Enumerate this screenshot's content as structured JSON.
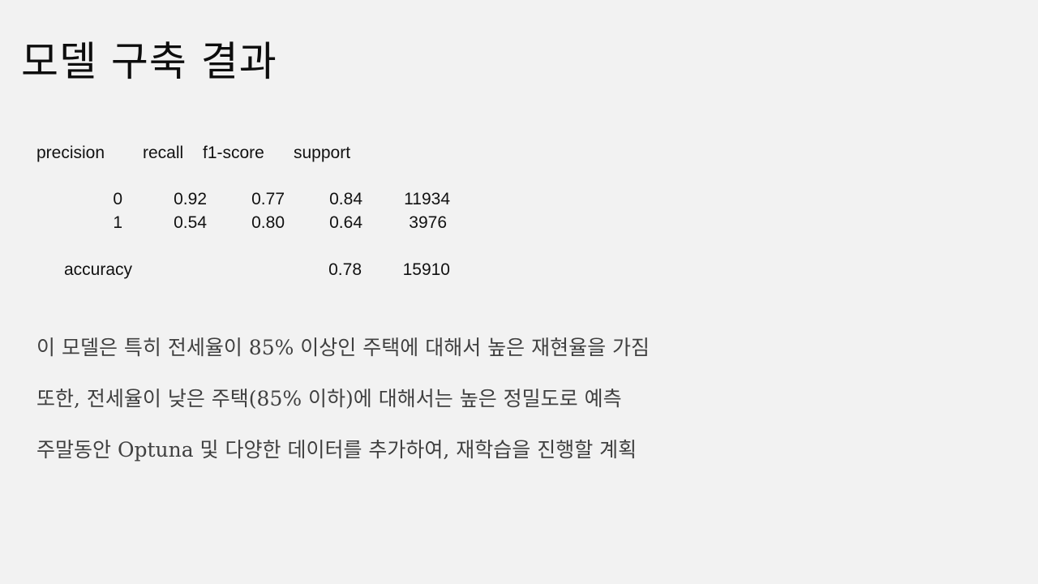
{
  "slide": {
    "title": "모델 구축 결과"
  },
  "classification_report": {
    "columns": [
      "precision",
      "recall",
      "f1-score",
      "support"
    ],
    "rows": [
      {
        "label": "0",
        "precision": "0.92",
        "recall": "0.77",
        "f1_score": "0.84",
        "support": "11934"
      },
      {
        "label": "1",
        "precision": "0.54",
        "recall": "0.80",
        "f1_score": "0.64",
        "support": "3976"
      }
    ],
    "accuracy": {
      "label": "accuracy",
      "f1_score": "0.78",
      "support": "15910"
    }
  },
  "notes": [
    "이 모델은 특히 전세율이 85% 이상인 주택에 대해서 높은 재현율을 가짐",
    "또한, 전세율이 낮은 주택(85% 이하)에 대해서는 높은 정밀도로 예측",
    "주말동안 Optuna 및 다양한 데이터를 추가하여, 재학습을 진행할 계획"
  ],
  "colors": {
    "background": "#f2f2f2",
    "title": "#0d0d0d",
    "report_text": "#111111",
    "note_text": "#404040"
  }
}
